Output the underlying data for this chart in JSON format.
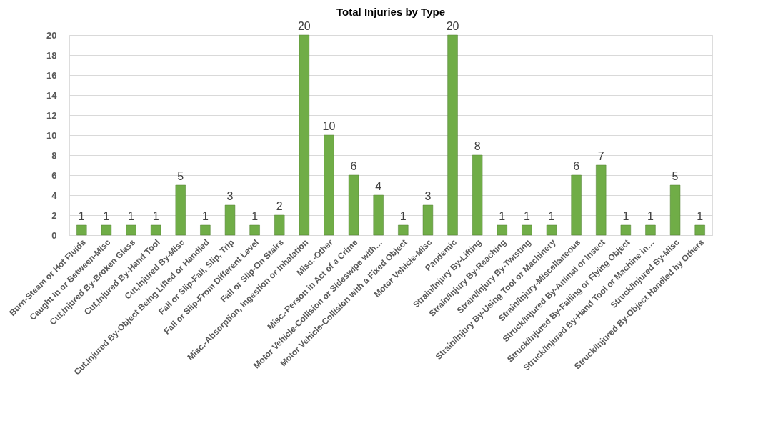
{
  "chart_data": {
    "type": "bar",
    "title": "Total Injuries by Type",
    "categories": [
      "Burn-Steam or Hot Fluids",
      "Caught In or Between-Misc",
      "Cut,Injured By-Broken Glass",
      "Cut,Injured By-Hand Tool",
      "Cut,Injured By-Misc",
      "Cut,Injured By-Object Being Lifted or Handled",
      "Fall or Slip-Fall, Slip, Trip",
      "Fall or Slip-From Different Level",
      "Fall or Slip-On Stairs",
      "Misc.-Absorption, Ingestion or Inhalation",
      "Misc.-Other",
      "Misc.-Person in Act of a Crime",
      "Motor Vehicle-Collision or Sideswipe with…",
      "Motor Vehicle-Collision with a Fixed Object",
      "Motor Vehicle-Misc",
      "Pandemic",
      "Strain/Injury By-Lifting",
      "Strain/Injury By-Reaching",
      "Strain/Injury By-Twisting",
      "Strain/Injury By-Using Tool or Machinery",
      "Strain/Injury-Miscellaneous",
      "Struck/Injured By-Animal or Insect",
      "Struck/Injured By-Falling or Flying Object",
      "Struck/Injured By-Hand Tool or Machine in…",
      "Struck/Injured By-Misc",
      "Struck/Injured By-Object Handled by Others"
    ],
    "values": [
      1,
      1,
      1,
      1,
      5,
      1,
      3,
      1,
      2,
      20,
      10,
      6,
      4,
      1,
      3,
      20,
      8,
      1,
      1,
      1,
      6,
      7,
      1,
      1,
      5,
      1
    ],
    "color": "#70ad47",
    "ylim": [
      0,
      20
    ],
    "yticks": [
      0,
      2,
      4,
      6,
      8,
      10,
      12,
      14,
      16,
      18,
      20
    ],
    "grid": "y",
    "data_labels": true
  }
}
